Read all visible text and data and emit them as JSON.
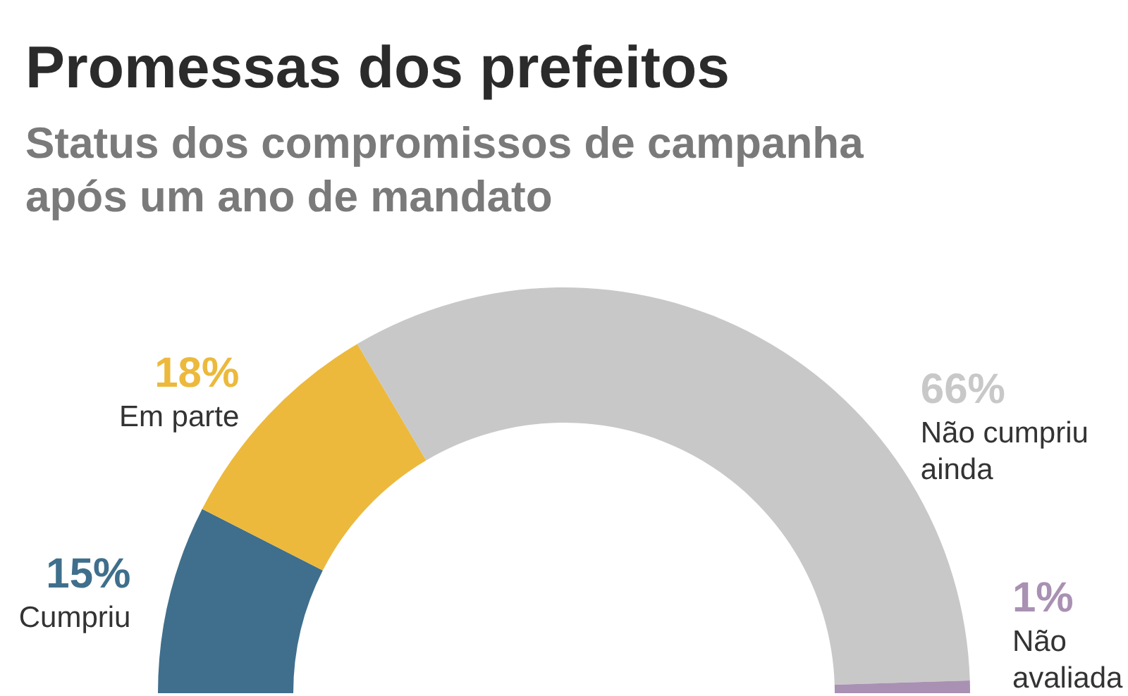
{
  "chart_data": {
    "type": "donut",
    "title": "Promessas dos prefeitos",
    "subtitle": "Status dos compromissos de campanha após um ano de mandato",
    "categories": [
      "Cumpriu",
      "Em parte",
      "Não cumpriu ainda",
      "Não avaliada"
    ],
    "values": [
      15,
      18,
      66,
      1
    ],
    "value_labels": [
      "15%",
      "18%",
      "66%",
      "1%"
    ],
    "colors": [
      "#3f6f8c",
      "#ecb93c",
      "#c8c8c8",
      "#a991b3"
    ]
  }
}
